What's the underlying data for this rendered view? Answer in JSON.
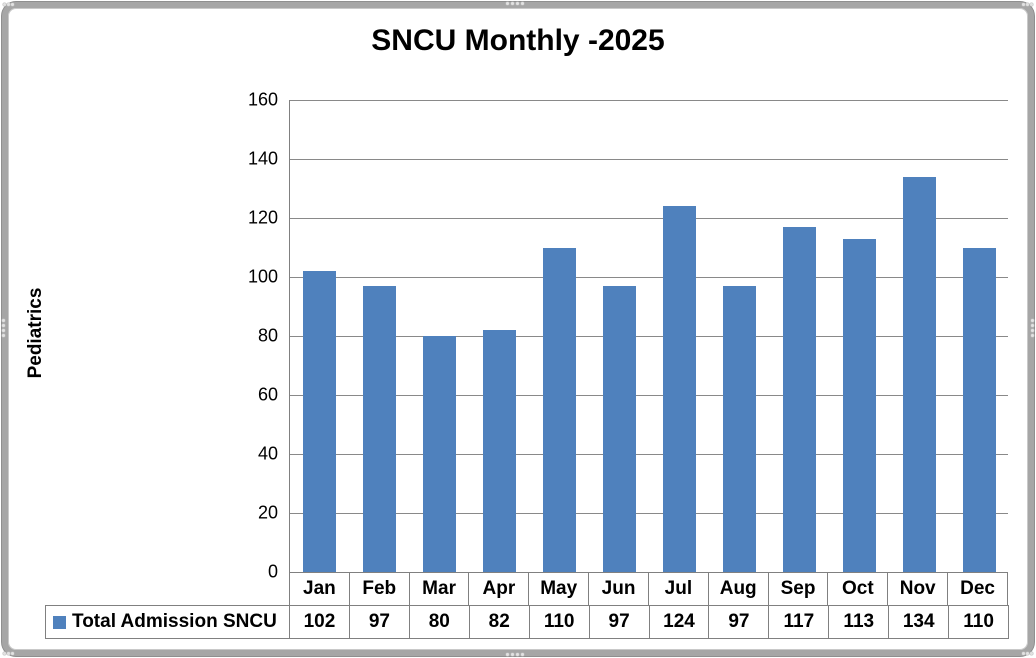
{
  "chart_data": {
    "type": "bar",
    "title": "SNCU Monthly -2025",
    "xlabel": "",
    "ylabel": "Pediatrics",
    "categories": [
      "Jan",
      "Feb",
      "Mar",
      "Apr",
      "May",
      "Jun",
      "Jul",
      "Aug",
      "Sep",
      "Oct",
      "Nov",
      "Dec"
    ],
    "series": [
      {
        "name": "Total Admission SNCU",
        "values": [
          102,
          97,
          80,
          82,
          110,
          97,
          124,
          97,
          117,
          113,
          134,
          110
        ]
      }
    ],
    "ylim": [
      0,
      160
    ],
    "yticks": [
      0,
      20,
      40,
      60,
      80,
      100,
      120,
      140,
      160
    ],
    "grid": true,
    "legend_position": "bottom-table",
    "colors": {
      "bar": "#4F81BD",
      "gridline": "#898989",
      "axis_border": "#808080",
      "frame": "#a6a6a6",
      "grip_dot": "#e2e2e2",
      "text": "#000000"
    }
  }
}
